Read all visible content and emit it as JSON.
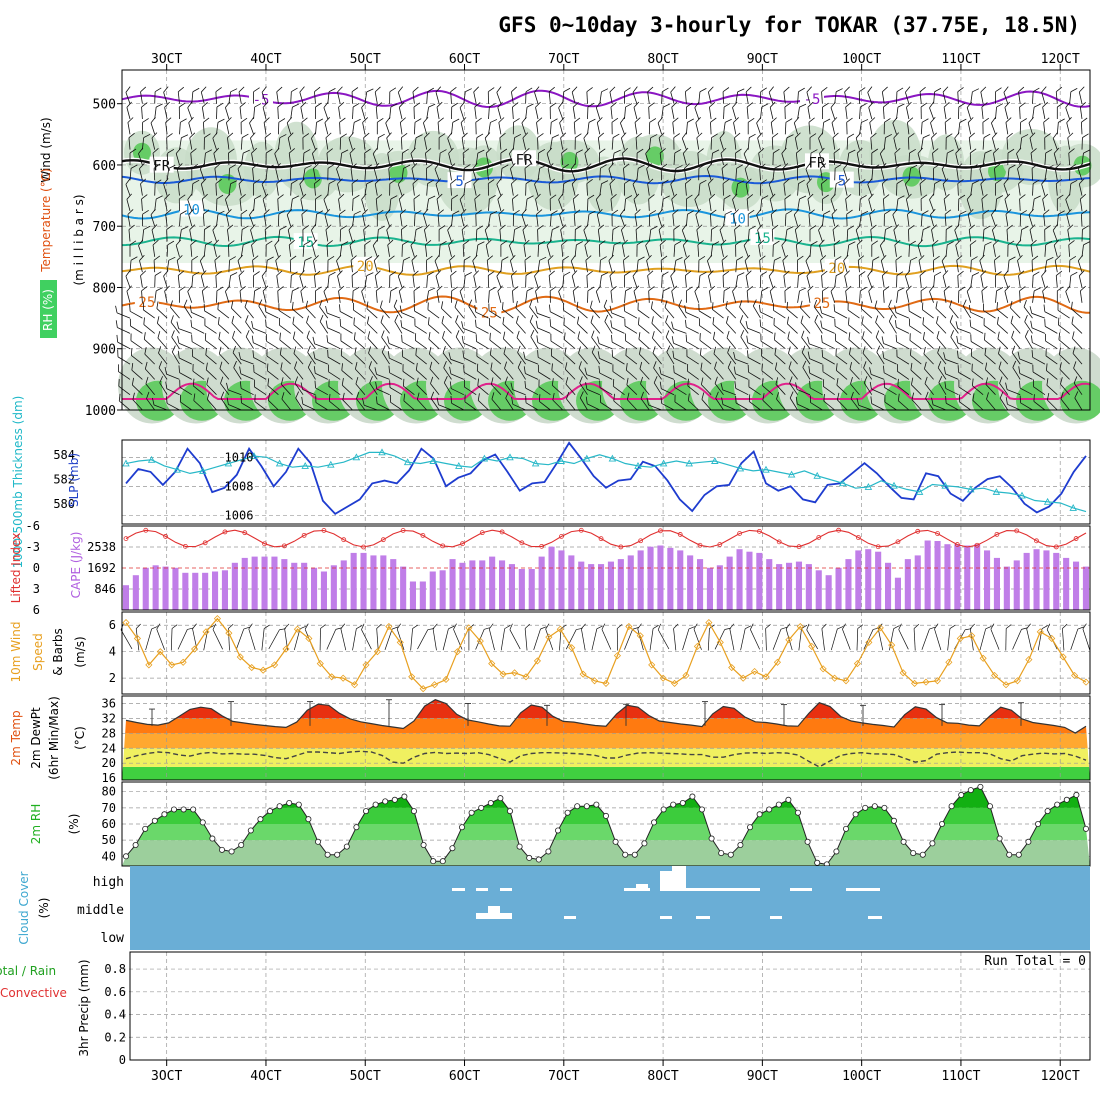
{
  "chart_data": {
    "type": "meteogram",
    "title": "GFS 0~10day 3-hourly for TOKAR (37.75E, 18.5N)",
    "x_labels": [
      "3OCT",
      "4OCT",
      "5OCT",
      "6OCT",
      "7OCT",
      "8OCT",
      "9OCT",
      "10OCT",
      "11OCT",
      "12OCT"
    ],
    "x_days_start": 2.55,
    "x_days_end": 12.3,
    "panels": {
      "upper_air": {
        "ylabel_wind": "Wind (m/s)",
        "ylabel_temp": "Temperature (°C)",
        "ylabel_rh": "RH (%)",
        "ylabel_units": "(m i l l i b a r s)",
        "pressure_ticks": [
          "500",
          "600",
          "700",
          "800",
          "900",
          "1000"
        ],
        "pressure_values": [
          500,
          600,
          700,
          800,
          900,
          1000
        ],
        "ylim": [
          445,
          1000
        ],
        "isotherms": [
          {
            "label": "-5",
            "level": 492,
            "amp": 9,
            "color": "#8a16c2",
            "label_days": [
              3.95,
              9.5
            ]
          },
          {
            "label": "FR",
            "level": 600,
            "amp": 7,
            "color": "#111111",
            "label_days": [
              2.95,
              6.6,
              9.55
            ]
          },
          {
            "label": "5",
            "level": 624,
            "amp": 4,
            "color": "#1a5ad8",
            "label_days": [
              5.95,
              9.8
            ]
          },
          {
            "label": "10",
            "level": 680,
            "amp": 5,
            "color": "#1a95dd",
            "label_days": [
              3.25,
              8.75
            ]
          },
          {
            "label": "15",
            "level": 725,
            "amp": 5,
            "color": "#1ab38e",
            "label_days": [
              4.4,
              9.0
            ]
          },
          {
            "label": "20",
            "level": 772,
            "amp": 5,
            "color": "#e0a020",
            "label_days": [
              5.0,
              9.75
            ]
          },
          {
            "label": "25",
            "level": 828,
            "amp": 9,
            "color": "#e06a14",
            "label_days": [
              2.8,
              6.25,
              9.6
            ]
          }
        ]
      },
      "slp_thickness": {
        "ylabel_thick": "1000-500mb Thickness (dm)",
        "ylabel_slp": "SLP (mb)",
        "thick_ticks": [
          "580",
          "582",
          "584"
        ],
        "slp_ticks": [
          "1006",
          "1008",
          "1010"
        ],
        "slp_range": [
          1005.4,
          1011.2
        ],
        "slp_values": [
          1008.2,
          1009.2,
          1009.0,
          1008.1,
          1009.0,
          1010.6,
          1009.6,
          1007.6,
          1007.9,
          1008.8,
          1010.6,
          1009.4,
          1008.0,
          1009.0,
          1010.6,
          1009.6,
          1007.0,
          1006.1,
          1006.6,
          1007.1,
          1008.2,
          1008.4,
          1008.2,
          1009.1,
          1010.6,
          1009.9,
          1008.0,
          1008.6,
          1008.9,
          1009.8,
          1010.2,
          1009.0,
          1007.7,
          1008.2,
          1008.3,
          1009.6,
          1011.0,
          1009.9,
          1008.7,
          1007.9,
          1008.4,
          1008.5,
          1009.7,
          1009.4,
          1008.4,
          1007.1,
          1006.3,
          1007.4,
          1008.0,
          1008.1,
          1009.6,
          1010.4,
          1008.2,
          1007.7,
          1008.0,
          1007.1,
          1006.9,
          1008.1,
          1008.2,
          1008.9,
          1009.6,
          1008.9,
          1008.0,
          1007.2,
          1007.1,
          1008.9,
          1008.7,
          1007.5,
          1007.0,
          1007.9,
          1008.5,
          1008.7,
          1007.9,
          1006.8,
          1006.2,
          1006.6,
          1007.5,
          1009.0,
          1010.1
        ],
        "thick_values": [
          583.3,
          583.5,
          583.6,
          583.1,
          582.8,
          582.5,
          582.7,
          583.0,
          583.3,
          583.6,
          583.9,
          583.8,
          583.3,
          583.0,
          583.1,
          583.0,
          583.2,
          583.4,
          583.8,
          584.2,
          584.2,
          583.9,
          583.4,
          583.3,
          583.5,
          583.3,
          583.1,
          583.0,
          583.7,
          583.5,
          583.8,
          583.7,
          583.3,
          583.2,
          583.5,
          583.3,
          583.7,
          584.0,
          583.7,
          583.3,
          583.1,
          583.0,
          583.3,
          583.5,
          583.3,
          583.4,
          583.5,
          583.2,
          582.9,
          582.7,
          582.8,
          582.6,
          582.4,
          582.7,
          582.3,
          582.0,
          581.7,
          581.3,
          581.4,
          581.9,
          581.5,
          581.2,
          581.0,
          581.6,
          581.5,
          581.4,
          581.2,
          581.3,
          581.0,
          580.9,
          580.7,
          580.3,
          580.2,
          580.1,
          579.7,
          579.4
        ]
      },
      "cape_li": {
        "ylabel_li": "Lifted Index",
        "ylabel_cape": "CAPE (J/kg)",
        "li_ticks": [
          "-6",
          "-3",
          "0",
          "3",
          "6"
        ],
        "cape_ticks": [
          "846",
          "1692",
          "2538"
        ],
        "cape_max": 3384,
        "cape_values": [
          1000,
          1400,
          1700,
          1800,
          1750,
          1700,
          1500,
          1500,
          1500,
          1550,
          1600,
          1900,
          2100,
          2150,
          2150,
          2150,
          2050,
          1900,
          1900,
          1700,
          1550,
          1800,
          2000,
          2300,
          2300,
          2200,
          2200,
          2050,
          1750,
          1150,
          1150,
          1550,
          1600,
          2050,
          1900,
          2000,
          2000,
          2150,
          2000,
          1850,
          1650,
          1650,
          2150,
          2550,
          2400,
          2200,
          1950,
          1850,
          1850,
          1950,
          2050,
          2200,
          2400,
          2550,
          2600,
          2500,
          2400,
          2200,
          2050,
          1700,
          1800,
          2150,
          2450,
          2350,
          2300,
          2050,
          1850,
          1900,
          1950,
          1850,
          1600,
          1400,
          1700,
          2050,
          2400,
          2450,
          2350,
          1900,
          1300,
          2050,
          2200,
          2800,
          2780,
          2650,
          2650,
          2600,
          2650,
          2400,
          2100,
          1750,
          2000,
          2300,
          2450,
          2400,
          2300,
          2100,
          1950,
          1750
        ]
      },
      "wind10m": {
        "ylabel_1": "10m Wind",
        "ylabel_2": "Speed",
        "ylabel_3": "& Barbs",
        "ylabel_units": "(m/s)",
        "ticks": [
          "2",
          "4",
          "6"
        ],
        "ylim": [
          0.8,
          7
        ],
        "speed_values": [
          6.2,
          5.0,
          3.0,
          4.0,
          3.0,
          3.2,
          4.2,
          5.5,
          6.5,
          5.4,
          3.6,
          2.8,
          2.6,
          3.0,
          4.2,
          5.7,
          5.0,
          3.1,
          2.1,
          2.0,
          1.5,
          3.0,
          4.0,
          5.9,
          4.7,
          2.1,
          1.2,
          1.5,
          1.9,
          4.0,
          5.8,
          4.8,
          3.1,
          2.3,
          2.4,
          2.1,
          3.3,
          5.1,
          5.7,
          4.3,
          2.3,
          1.8,
          1.6,
          3.7,
          5.9,
          5.2,
          3.0,
          2.0,
          1.6,
          2.2,
          4.4,
          6.2,
          4.7,
          2.8,
          2.0,
          2.5,
          2.1,
          3.2,
          4.9,
          5.9,
          4.4,
          2.7,
          2.0,
          1.8,
          3.1,
          4.7,
          5.8,
          4.5,
          2.4,
          1.6,
          1.7,
          1.8,
          3.2,
          5.0,
          5.2,
          3.5,
          2.2,
          1.5,
          1.8,
          3.4,
          5.5,
          5.0,
          3.6,
          2.2,
          1.7
        ]
      },
      "temp2m": {
        "ylabel_1": "2m Temp",
        "ylabel_2": "2m DewPt",
        "ylabel_3": "(6hr Min/Max)",
        "ylabel_units": "(°C)",
        "ticks": [
          "16",
          "20",
          "24",
          "28",
          "32",
          "36"
        ],
        "ylim": [
          15.5,
          38
        ],
        "temp_values": [
          31.5,
          30.9,
          30.4,
          30.2,
          30.8,
          32.6,
          34.4,
          35.0,
          34.6,
          32.7,
          31.2,
          30.8,
          30.4,
          30.1,
          29.8,
          29.6,
          31.0,
          34.2,
          35.8,
          35.5,
          33.4,
          31.9,
          31.1,
          30.6,
          30.1,
          29.7,
          29.3,
          31.3,
          35.3,
          37.0,
          36.0,
          33.1,
          31.6,
          31.1,
          30.5,
          30.0,
          29.9,
          33.5,
          35.6,
          35.0,
          32.6,
          31.2,
          31.0,
          30.5,
          30.1,
          29.9,
          33.2,
          35.5,
          35.0,
          32.8,
          31.3,
          30.9,
          30.5,
          30.2,
          29.8,
          33.2,
          35.2,
          34.7,
          32.4,
          31.1,
          30.9,
          30.5,
          30.0,
          29.9,
          33.3,
          36.2,
          35.2,
          32.5,
          31.3,
          30.8,
          30.4,
          30.1,
          29.7,
          33.0,
          35.1,
          34.5,
          32.2,
          30.8,
          30.7,
          30.2,
          30.0,
          32.7,
          35.0,
          34.2,
          31.9,
          30.9,
          30.5,
          30.1,
          29.6,
          28.1,
          29.9
        ],
        "dew_values": [
          21.2,
          22.0,
          22.6,
          23.0,
          22.8,
          22.2,
          21.9,
          22.6,
          22.9,
          22.5,
          22.6,
          22.4,
          22.4,
          22.1,
          21.5,
          21.2,
          22.1,
          23.0,
          23.0,
          22.8,
          22.6,
          23.0,
          23.2,
          23.0,
          22.1,
          20.3,
          20.0,
          21.6,
          22.6,
          22.9,
          22.6,
          22.7,
          22.6,
          22.8,
          22.3,
          21.3,
          20.3,
          22.0,
          22.6,
          22.8,
          22.8,
          22.7,
          22.6,
          22.4,
          22.1,
          21.4,
          21.4,
          22.2,
          22.7,
          22.8,
          22.7,
          22.6,
          22.5,
          22.3,
          22.3,
          21.6,
          21.6,
          22.3,
          22.7,
          22.8,
          22.6,
          22.8,
          22.7,
          22.2,
          20.5,
          19.0,
          20.6,
          22.1,
          22.6,
          22.8,
          22.5,
          22.5,
          22.3,
          21.3,
          20.3,
          20.7,
          22.4,
          22.8,
          23.0,
          22.8,
          22.8,
          22.5,
          21.2,
          20.6,
          22.0,
          22.4,
          22.7,
          22.5,
          22.6,
          21.9,
          20.8
        ],
        "max_bars": [
          34.5,
          36.5,
          36.5,
          37.0,
          36.0,
          35.5,
          35.8,
          36.5,
          35.7,
          35.5,
          35.7,
          36.2
        ]
      },
      "rh2m": {
        "ylabel_1": "2m RH",
        "ylabel_units": "(%)",
        "ticks": [
          "40",
          "50",
          "60",
          "70",
          "80"
        ],
        "ylim": [
          34,
          86
        ],
        "values": [
          40,
          47,
          57,
          62,
          66,
          69,
          69,
          69,
          61,
          51,
          44,
          43,
          47,
          56,
          63,
          68,
          71,
          73,
          72,
          63,
          49,
          41,
          41,
          46,
          58,
          68,
          72,
          74,
          75,
          77,
          68,
          47,
          37,
          37,
          45,
          58,
          67,
          70,
          73,
          76,
          68,
          46,
          39,
          38,
          43,
          56,
          67,
          71,
          71,
          72,
          65,
          49,
          41,
          41,
          48,
          61,
          69,
          72,
          73,
          77,
          69,
          51,
          42,
          41,
          47,
          58,
          66,
          69,
          72,
          75,
          67,
          49,
          36,
          35,
          43,
          57,
          66,
          70,
          71,
          70,
          62,
          49,
          42,
          41,
          48,
          60,
          71,
          78,
          81,
          83,
          71,
          51,
          41,
          41,
          49,
          60,
          68,
          72,
          75,
          78,
          57
        ]
      },
      "cloud": {
        "ylabel_1": "Cloud Cover",
        "ylabel_units": "(%)",
        "levels": [
          "high",
          "middle",
          "low"
        ]
      },
      "precip": {
        "ylabel_1": "Total / Rain",
        "ylabel_2": "Convective",
        "ylabel_3": "3hr Precip (mm)",
        "ticks": [
          "0",
          "0.2",
          "0.4",
          "0.6",
          "0.8"
        ],
        "run_total": "Run Total = 0"
      }
    }
  }
}
